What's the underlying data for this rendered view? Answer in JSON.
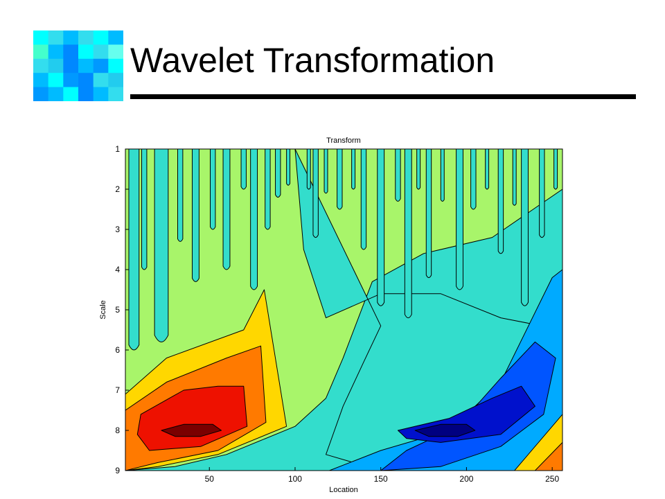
{
  "slide": {
    "title": "Wavelet Transformation"
  },
  "colors": {
    "title_rule": "#000000",
    "mosaic_palette": [
      "#00ffff",
      "#33ddee",
      "#00bbff",
      "#0088ff",
      "#44ffcc",
      "#22ccee",
      "#0099ff",
      "#66ffee"
    ]
  },
  "chart_data": {
    "type": "heatmap",
    "title": "Transform",
    "xlabel": "Location",
    "ylabel": "Scale",
    "xlim": [
      1,
      256
    ],
    "ylim": [
      1,
      9
    ],
    "y_inverted": true,
    "x_ticks": [
      "50",
      "100",
      "150",
      "200",
      "250"
    ],
    "x_tick_values": [
      50,
      100,
      150,
      200,
      250
    ],
    "y_ticks": [
      "1",
      "2",
      "3",
      "4",
      "5",
      "6",
      "7",
      "8",
      "9"
    ],
    "y_tick_values": [
      1,
      2,
      3,
      4,
      5,
      6,
      7,
      8,
      9
    ],
    "colormap": [
      "#00007f",
      "#0000ff",
      "#0080ff",
      "#00ffff",
      "#80ff80",
      "#ffff00",
      "#ff8000",
      "#ff0000",
      "#7f0000"
    ],
    "background_color": "#33ddcc",
    "regions": [
      {
        "color": "#a8f56a",
        "points": [
          [
            1,
            1
          ],
          [
            256,
            1
          ],
          [
            256,
            2
          ],
          [
            215,
            3.2
          ],
          [
            175,
            3.6
          ],
          [
            145,
            4.3
          ],
          [
            128,
            6.2
          ],
          [
            118,
            7.2
          ],
          [
            100,
            7.9
          ],
          [
            60,
            8.6
          ],
          [
            30,
            8.9
          ],
          [
            1,
            9
          ]
        ]
      },
      {
        "color": "#33ddcc",
        "points": [
          [
            100,
            1
          ],
          [
            105,
            3.5
          ],
          [
            118,
            5.2
          ],
          [
            150,
            4.6
          ],
          [
            185,
            4.6
          ],
          [
            220,
            5.2
          ],
          [
            256,
            5.5
          ],
          [
            256,
            9
          ],
          [
            150,
            9
          ],
          [
            118,
            8.6
          ],
          [
            128,
            7.4
          ],
          [
            140,
            6.3
          ],
          [
            150,
            5.4
          ]
        ]
      },
      {
        "color": "#ffd700",
        "points": [
          [
            1,
            7.1
          ],
          [
            25,
            6.2
          ],
          [
            70,
            5.5
          ],
          [
            82,
            4.5
          ],
          [
            95,
            7.9
          ],
          [
            55,
            8.6
          ],
          [
            20,
            8.9
          ],
          [
            1,
            9
          ]
        ]
      },
      {
        "color": "#ff7a00",
        "points": [
          [
            1,
            7.5
          ],
          [
            25,
            6.8
          ],
          [
            60,
            6.2
          ],
          [
            80,
            5.9
          ],
          [
            83,
            7.8
          ],
          [
            55,
            8.5
          ],
          [
            20,
            8.8
          ],
          [
            1,
            9
          ]
        ]
      },
      {
        "color": "#ee1100",
        "points": [
          [
            10,
            7.6
          ],
          [
            35,
            7.0
          ],
          [
            55,
            6.9
          ],
          [
            70,
            6.9
          ],
          [
            72,
            7.9
          ],
          [
            45,
            8.4
          ],
          [
            15,
            8.5
          ],
          [
            8,
            8.1
          ]
        ]
      },
      {
        "color": "#7a0000",
        "points": [
          [
            22,
            8.0
          ],
          [
            35,
            7.85
          ],
          [
            52,
            7.85
          ],
          [
            57,
            8.0
          ],
          [
            45,
            8.15
          ],
          [
            30,
            8.15
          ]
        ]
      },
      {
        "color": "#00aaff",
        "points": [
          [
            120,
            9
          ],
          [
            150,
            8.5
          ],
          [
            190,
            8.0
          ],
          [
            220,
            6.8
          ],
          [
            250,
            4.2
          ],
          [
            256,
            4.0
          ],
          [
            256,
            9
          ]
        ]
      },
      {
        "color": "#0055ff",
        "points": [
          [
            150,
            9
          ],
          [
            165,
            8.5
          ],
          [
            195,
            7.9
          ],
          [
            220,
            6.7
          ],
          [
            240,
            5.8
          ],
          [
            252,
            6.2
          ],
          [
            245,
            7.6
          ],
          [
            220,
            8.4
          ],
          [
            185,
            8.9
          ]
        ]
      },
      {
        "color": "#0011cc",
        "points": [
          [
            160,
            8.0
          ],
          [
            190,
            7.7
          ],
          [
            215,
            7.2
          ],
          [
            232,
            6.9
          ],
          [
            240,
            7.4
          ],
          [
            220,
            8.1
          ],
          [
            185,
            8.3
          ],
          [
            165,
            8.2
          ]
        ]
      },
      {
        "color": "#000080",
        "points": [
          [
            170,
            8.0
          ],
          [
            185,
            7.85
          ],
          [
            200,
            7.85
          ],
          [
            205,
            8.0
          ],
          [
            195,
            8.15
          ],
          [
            178,
            8.15
          ]
        ]
      },
      {
        "color": "#ffd700",
        "points": [
          [
            228,
            9
          ],
          [
            256,
            7.6
          ],
          [
            256,
            9
          ]
        ]
      },
      {
        "color": "#ff7a00",
        "points": [
          [
            240,
            9
          ],
          [
            256,
            8.3
          ],
          [
            256,
            9
          ]
        ]
      }
    ],
    "fingers": [
      {
        "x": 6,
        "depth": 6.0,
        "width": 6
      },
      {
        "x": 12,
        "depth": 4.0,
        "width": 3
      },
      {
        "x": 22,
        "depth": 5.8,
        "width": 8
      },
      {
        "x": 33,
        "depth": 3.3,
        "width": 3
      },
      {
        "x": 42,
        "depth": 4.3,
        "width": 4
      },
      {
        "x": 52,
        "depth": 3.0,
        "width": 3
      },
      {
        "x": 60,
        "depth": 4.0,
        "width": 4
      },
      {
        "x": 70,
        "depth": 2.0,
        "width": 3
      },
      {
        "x": 76,
        "depth": 4.5,
        "width": 4
      },
      {
        "x": 84,
        "depth": 3.0,
        "width": 3
      },
      {
        "x": 90,
        "depth": 2.2,
        "width": 3
      },
      {
        "x": 96,
        "depth": 1.9,
        "width": 2
      },
      {
        "x": 108,
        "depth": 2.0,
        "width": 2
      },
      {
        "x": 112,
        "depth": 3.2,
        "width": 3
      },
      {
        "x": 118,
        "depth": 2.1,
        "width": 2
      },
      {
        "x": 126,
        "depth": 2.5,
        "width": 3
      },
      {
        "x": 134,
        "depth": 2.0,
        "width": 2
      },
      {
        "x": 140,
        "depth": 3.5,
        "width": 3
      },
      {
        "x": 150,
        "depth": 4.9,
        "width": 4
      },
      {
        "x": 160,
        "depth": 2.3,
        "width": 3
      },
      {
        "x": 166,
        "depth": 5.2,
        "width": 4
      },
      {
        "x": 172,
        "depth": 2.0,
        "width": 2
      },
      {
        "x": 178,
        "depth": 4.2,
        "width": 3
      },
      {
        "x": 186,
        "depth": 2.3,
        "width": 2
      },
      {
        "x": 196,
        "depth": 4.5,
        "width": 4
      },
      {
        "x": 204,
        "depth": 2.5,
        "width": 3
      },
      {
        "x": 212,
        "depth": 2.0,
        "width": 2
      },
      {
        "x": 220,
        "depth": 3.6,
        "width": 3
      },
      {
        "x": 228,
        "depth": 2.4,
        "width": 2
      },
      {
        "x": 234,
        "depth": 4.9,
        "width": 4
      },
      {
        "x": 244,
        "depth": 3.2,
        "width": 3
      },
      {
        "x": 252,
        "depth": 2.0,
        "width": 2
      }
    ],
    "grid": false,
    "legend": "none"
  }
}
